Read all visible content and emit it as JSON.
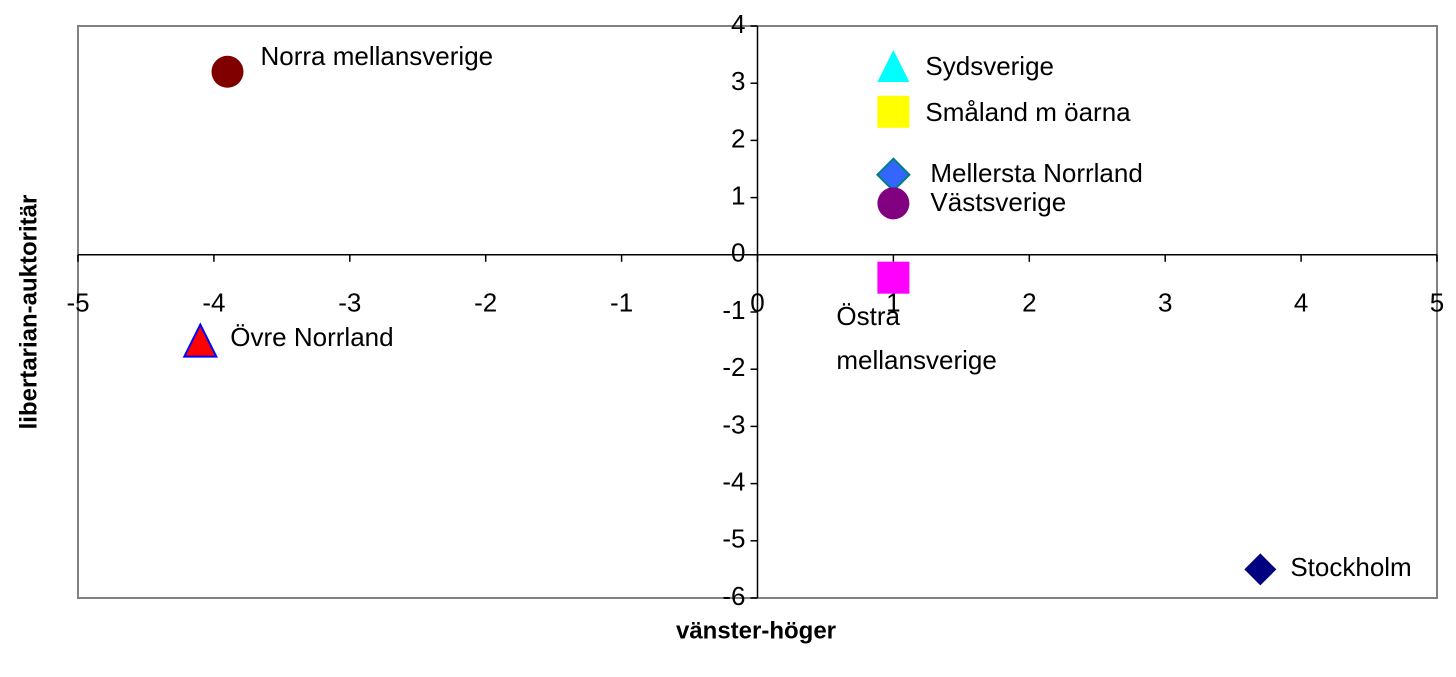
{
  "chart_data": {
    "type": "scatter",
    "x_label": "vänster-höger",
    "y_label": "libertarian-auktoritär",
    "xlim": [
      -5,
      5
    ],
    "xticks": [
      -5,
      -4,
      -3,
      -2,
      -1,
      0,
      1,
      2,
      3,
      4,
      5
    ],
    "ylim": [
      -6,
      4
    ],
    "yticks": [
      -6,
      -5,
      -4,
      -3,
      -2,
      -1,
      0,
      1,
      2,
      3,
      4
    ],
    "series": [
      {
        "name": "Norra mellansverige",
        "color": "#800000",
        "marker": "circle",
        "x": [
          -3.9
        ],
        "values": [
          3.2
        ]
      },
      {
        "name": "Sydsverige",
        "color": "#00ffff",
        "marker": "triangle",
        "x": [
          1
        ],
        "values": [
          3.3
        ]
      },
      {
        "name": "Småland m öarna",
        "color": "#ffff00",
        "marker": "square",
        "x": [
          1
        ],
        "values": [
          2.5
        ]
      },
      {
        "name": "Mellersta Norrland",
        "color": "#3366ff",
        "marker": "diamond",
        "x": [
          1
        ],
        "values": [
          1.4
        ]
      },
      {
        "name": "Västsverige",
        "color": "#800080",
        "marker": "circle",
        "x": [
          1
        ],
        "values": [
          0.9
        ]
      },
      {
        "name": "Östra mellansverige",
        "color": "#ff00ff",
        "marker": "square",
        "x": [
          1
        ],
        "values": [
          -0.4
        ]
      },
      {
        "name": "Övre Norrland",
        "color": "#ff0000",
        "marker": "triangle",
        "x": [
          -4.1
        ],
        "values": [
          -1.5
        ]
      },
      {
        "name": "Stockholm",
        "color": "#000080",
        "marker": "diamond",
        "x": [
          3.7
        ],
        "values": [
          -5.5
        ]
      }
    ]
  }
}
